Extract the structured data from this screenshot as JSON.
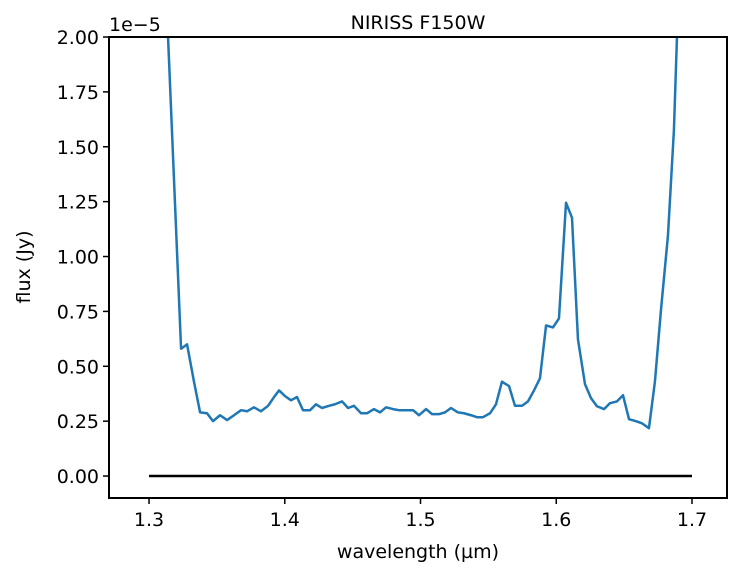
{
  "chart_data": {
    "type": "line",
    "title": "NIRISS F150W",
    "xlabel": "wavelength (µm)",
    "ylabel": "flux (Jy)",
    "offset_label": "1e−5",
    "xlim": [
      1.2705,
      1.7258
    ],
    "ylim": [
      -0.1,
      2.0
    ],
    "xticks": [
      1.3,
      1.4,
      1.5,
      1.6,
      1.7
    ],
    "yticks": [
      {
        "value": 0,
        "label": "0.00"
      },
      0.25,
      {
        "value": 0.5,
        "label": "0.50"
      },
      0.75,
      {
        "value": 1,
        "label": "1.00"
      },
      1.25,
      {
        "value": 1.5,
        "label": "1.50"
      },
      1.75,
      {
        "value": 2,
        "label": "2.00"
      }
    ],
    "series": [
      {
        "color": "#1f77b4",
        "x": [
          1.3096,
          1.3236,
          1.328,
          1.3331,
          1.3376,
          1.3427,
          1.3471,
          1.3523,
          1.3575,
          1.3626,
          1.3678,
          1.3722,
          1.3773,
          1.3825,
          1.3877,
          1.3921,
          1.3958,
          1.4002,
          1.4046,
          1.409,
          1.4134,
          1.4186,
          1.423,
          1.4274,
          1.4326,
          1.437,
          1.4422,
          1.4466,
          1.451,
          1.4562,
          1.4606,
          1.4657,
          1.4702,
          1.4746,
          1.4797,
          1.4842,
          1.4893,
          1.4945,
          1.4989,
          1.5041,
          1.5085,
          1.5136,
          1.518,
          1.5225,
          1.5276,
          1.532,
          1.5372,
          1.5416,
          1.546,
          1.5512,
          1.5556,
          1.56,
          1.5652,
          1.5696,
          1.5748,
          1.5792,
          1.5836,
          1.588,
          1.5925,
          1.5976,
          1.602,
          1.6072,
          1.6116,
          1.616,
          1.6212,
          1.6256,
          1.63,
          1.6352,
          1.6396,
          1.6447,
          1.6492,
          1.6536,
          1.6587,
          1.6632,
          1.6683,
          1.6727,
          1.6772,
          1.6823,
          1.6867,
          1.6919
        ],
        "values": [
          2.65,
          0.58,
          0.6,
          0.43,
          0.29,
          0.286,
          0.25,
          0.277,
          0.255,
          0.277,
          0.3,
          0.295,
          0.313,
          0.295,
          0.32,
          0.36,
          0.39,
          0.364,
          0.345,
          0.36,
          0.3,
          0.3,
          0.327,
          0.31,
          0.32,
          0.327,
          0.34,
          0.31,
          0.32,
          0.286,
          0.286,
          0.305,
          0.29,
          0.313,
          0.305,
          0.3,
          0.3,
          0.3,
          0.277,
          0.305,
          0.282,
          0.282,
          0.29,
          0.31,
          0.29,
          0.286,
          0.277,
          0.268,
          0.268,
          0.286,
          0.327,
          0.43,
          0.41,
          0.32,
          0.32,
          0.34,
          0.39,
          0.445,
          0.686,
          0.677,
          0.718,
          1.245,
          1.177,
          0.623,
          0.418,
          0.355,
          0.318,
          0.305,
          0.332,
          0.34,
          0.368,
          0.259,
          0.25,
          0.24,
          0.218,
          0.43,
          0.76,
          1.095,
          1.577,
          2.56
        ]
      },
      {
        "color": "#000000",
        "x": [
          1.3,
          1.7
        ],
        "values": [
          0,
          0
        ]
      }
    ]
  }
}
